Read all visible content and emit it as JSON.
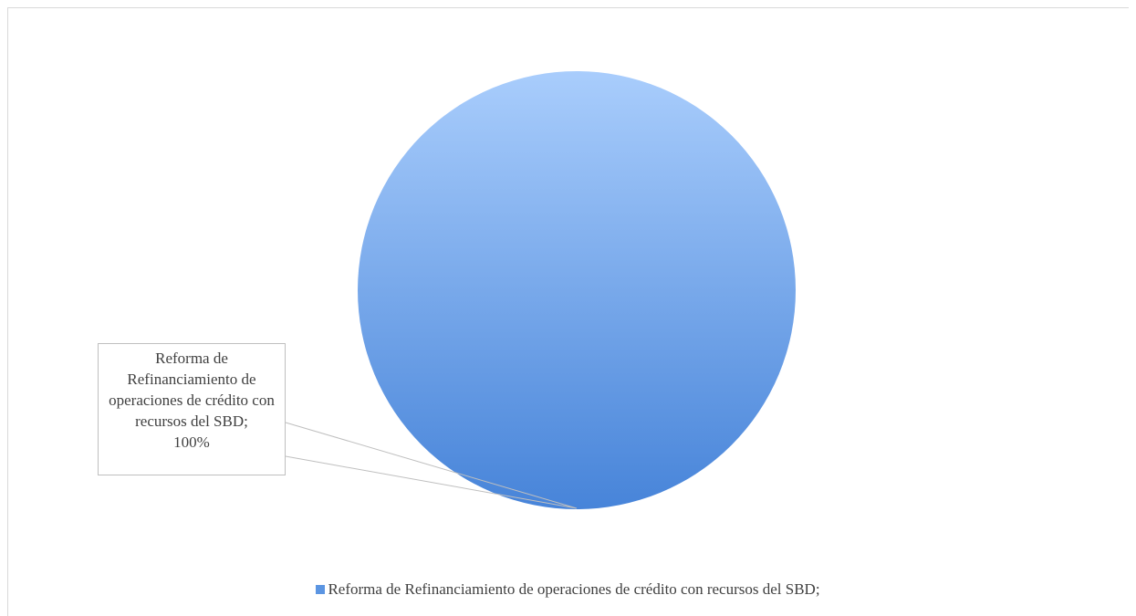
{
  "chart_data": {
    "type": "pie",
    "categories": [
      "Reforma de Refinanciamiento de operaciones de crédito con recursos del SBD;"
    ],
    "values": [
      100
    ],
    "value_labels": [
      "100%"
    ],
    "colors": [
      "#5b95e2"
    ],
    "legend": "bottom"
  }
}
